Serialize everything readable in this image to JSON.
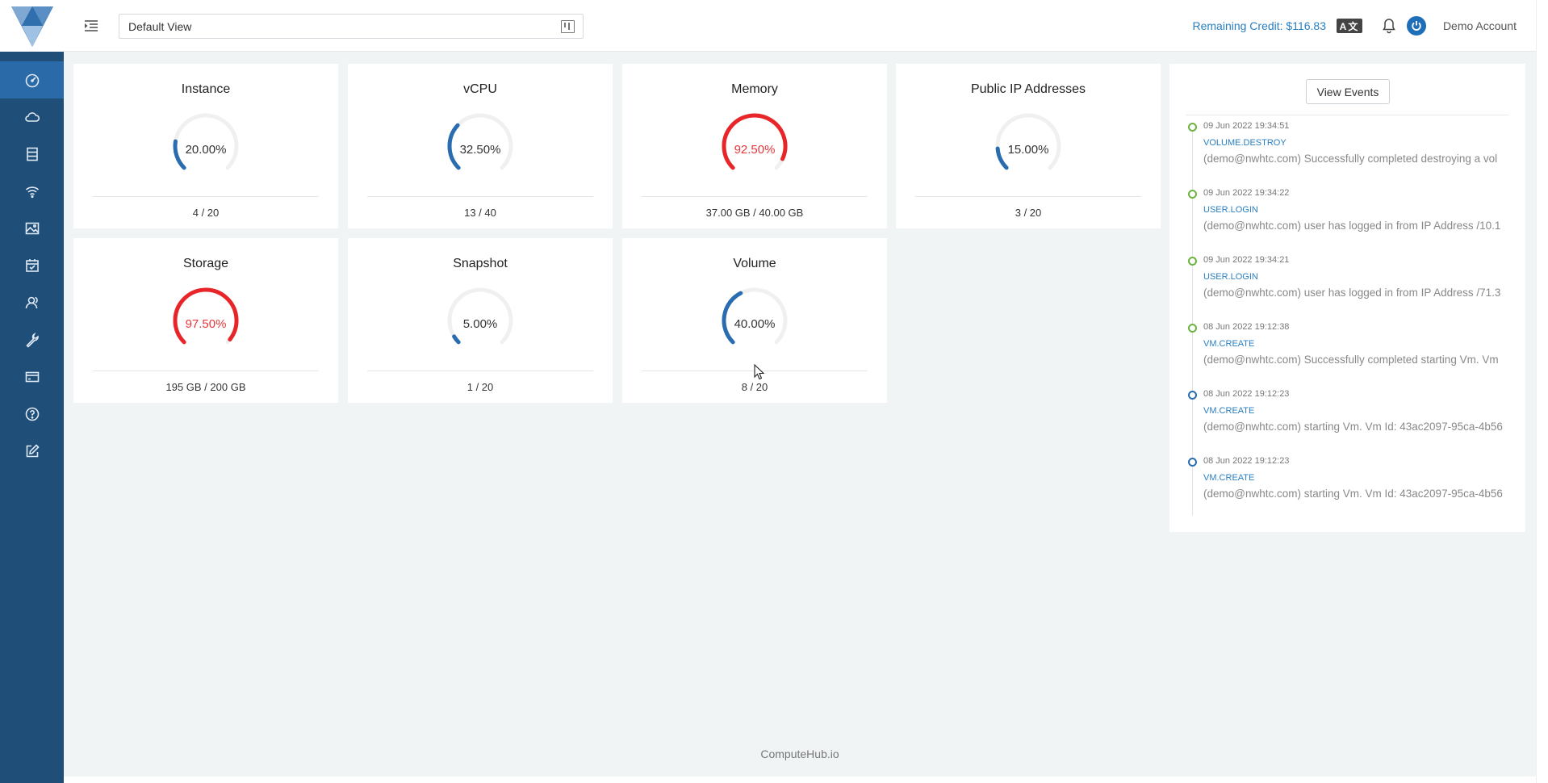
{
  "header": {
    "view_select": "Default View",
    "credit": "Remaining Credit: $116.83",
    "lang_icon": "A文",
    "account": "Demo Account"
  },
  "sidebar": {
    "items": [
      {
        "icon": "dashboard-icon",
        "active": true
      },
      {
        "icon": "cloud-icon"
      },
      {
        "icon": "server-icon"
      },
      {
        "icon": "wifi-icon"
      },
      {
        "icon": "image-icon"
      },
      {
        "icon": "calendar-check-icon"
      },
      {
        "icon": "users-icon"
      },
      {
        "icon": "wrench-icon"
      },
      {
        "icon": "credit-card-icon"
      },
      {
        "icon": "help-icon"
      },
      {
        "icon": "edit-icon"
      }
    ]
  },
  "gauges": [
    {
      "title": "Instance",
      "value": "20.00%",
      "percent": 20.0,
      "usage": "4 / 20",
      "status": "normal"
    },
    {
      "title": "vCPU",
      "value": "32.50%",
      "percent": 32.5,
      "usage": "13 / 40",
      "status": "normal"
    },
    {
      "title": "Memory",
      "value": "92.50%",
      "percent": 92.5,
      "usage": "37.00 GB / 40.00 GB",
      "status": "danger"
    },
    {
      "title": "Public IP Addresses",
      "value": "15.00%",
      "percent": 15.0,
      "usage": "3 / 20",
      "status": "normal"
    },
    {
      "title": "Storage",
      "value": "97.50%",
      "percent": 97.5,
      "usage": "195 GB / 200 GB",
      "status": "danger"
    },
    {
      "title": "Snapshot",
      "value": "5.00%",
      "percent": 5.0,
      "usage": "1 / 20",
      "status": "normal"
    },
    {
      "title": "Volume",
      "value": "40.00%",
      "percent": 40.0,
      "usage": "8 / 20",
      "status": "normal"
    }
  ],
  "colors": {
    "normal": "#2a6cb0",
    "danger": "#e8262a",
    "track": "#f0f0f0"
  },
  "events": {
    "view_button": "View Events",
    "items": [
      {
        "time": "09 Jun 2022 19:34:51",
        "type": "VOLUME.DESTROY",
        "message": "(demo@nwhtc.com) Successfully completed destroying a vol",
        "dot": "green"
      },
      {
        "time": "09 Jun 2022 19:34:22",
        "type": "USER.LOGIN",
        "message": "(demo@nwhtc.com) user has logged in from IP Address /10.1",
        "dot": "green"
      },
      {
        "time": "09 Jun 2022 19:34:21",
        "type": "USER.LOGIN",
        "message": "(demo@nwhtc.com) user has logged in from IP Address /71.3",
        "dot": "green"
      },
      {
        "time": "08 Jun 2022 19:12:38",
        "type": "VM.CREATE",
        "message": "(demo@nwhtc.com) Successfully completed starting Vm. Vm",
        "dot": "green"
      },
      {
        "time": "08 Jun 2022 19:12:23",
        "type": "VM.CREATE",
        "message": "(demo@nwhtc.com) starting Vm. Vm Id: 43ac2097-95ca-4b56",
        "dot": "blue"
      },
      {
        "time": "08 Jun 2022 19:12:23",
        "type": "VM.CREATE",
        "message": "(demo@nwhtc.com) starting Vm. Vm Id: 43ac2097-95ca-4b56",
        "dot": "blue"
      }
    ]
  },
  "footer": {
    "text": "ComputeHub.io"
  }
}
